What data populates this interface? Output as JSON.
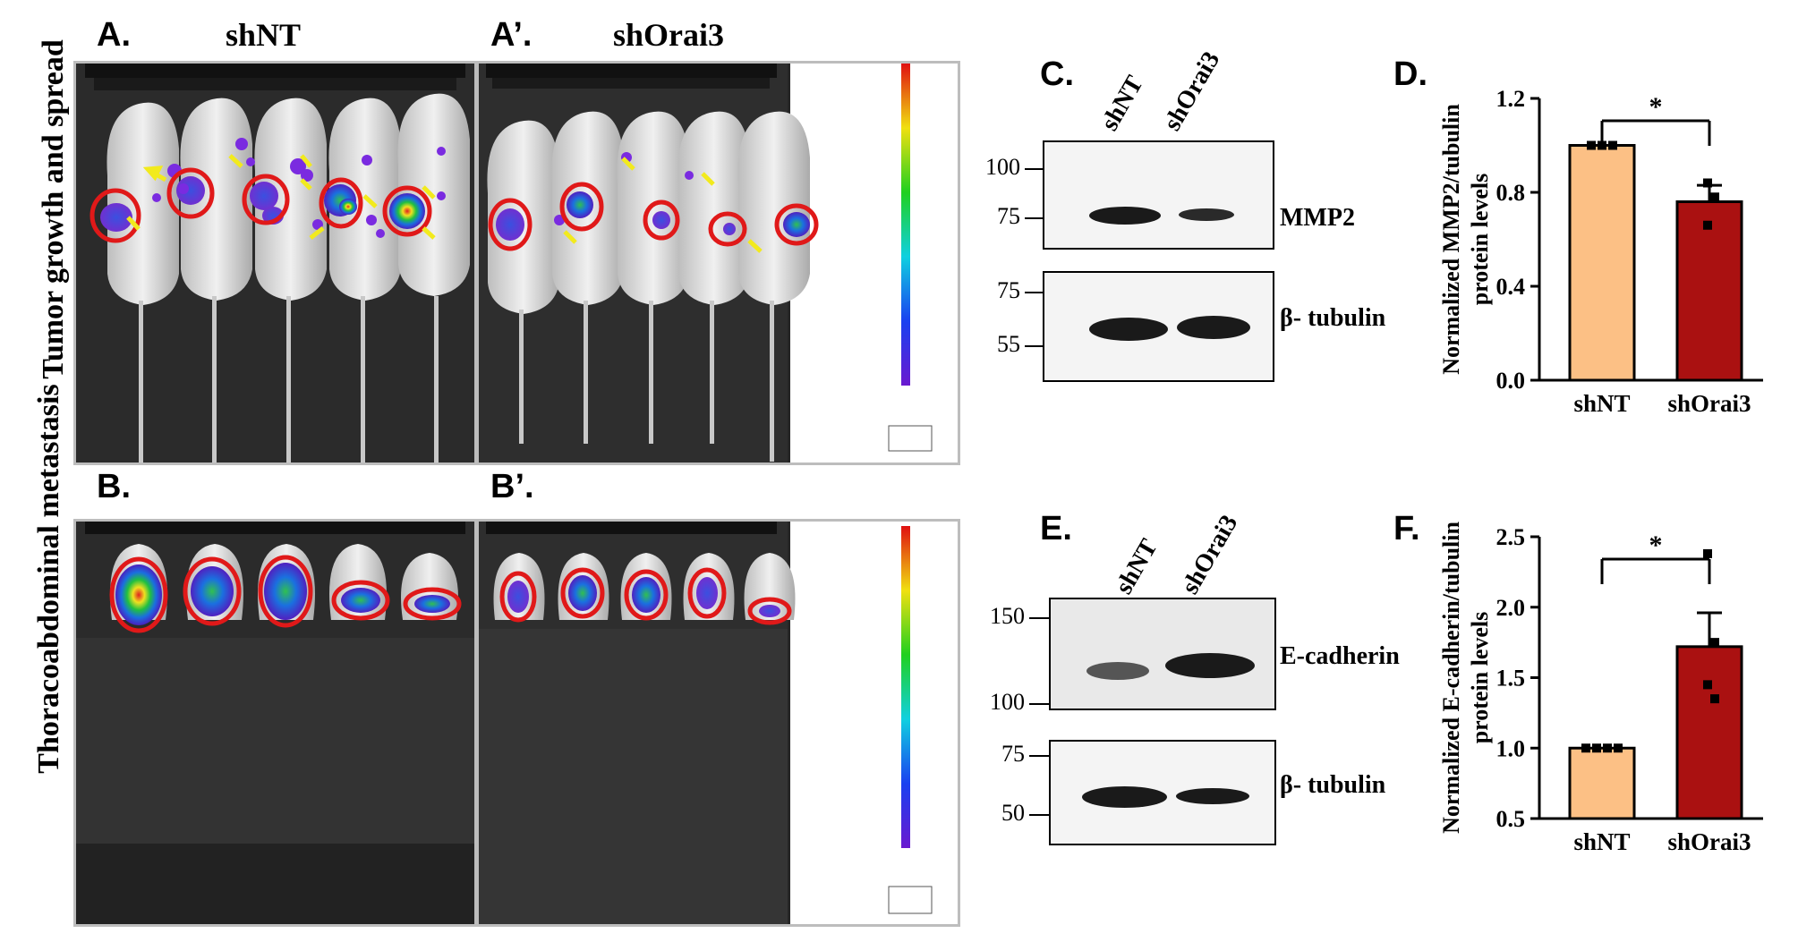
{
  "row_labels": {
    "top": "Tumor growth and spread",
    "bottom": "Thoracoabdominal metastasis"
  },
  "panels": {
    "A": {
      "label": "A.",
      "title": "shNT"
    },
    "A2": {
      "label": "A’.",
      "title": "shOrai3"
    },
    "B": {
      "label": "B."
    },
    "B2": {
      "label": "B’."
    },
    "C": {
      "label": "C."
    },
    "D": {
      "label": "D."
    },
    "E": {
      "label": "E."
    },
    "F": {
      "label": "F."
    }
  },
  "blots": {
    "C": {
      "lanes": [
        "shNT",
        "shOrai3"
      ],
      "top": {
        "protein": "MMP2",
        "markers": [
          "100",
          "75"
        ]
      },
      "bottom": {
        "protein": "β- tubulin",
        "markers": [
          "75",
          "55"
        ]
      }
    },
    "E": {
      "lanes": [
        "shNT",
        "shOrai3"
      ],
      "top": {
        "protein": "E-cadherin",
        "markers": [
          "150",
          "100"
        ]
      },
      "bottom": {
        "protein": "β- tubulin",
        "markers": [
          "75",
          "50"
        ]
      }
    }
  },
  "colors": {
    "shNT": "#fcc085",
    "shOrai3": "#aa1111",
    "tumor_circle": "#e01919",
    "arrow": "#f2ea1d"
  },
  "chart_data": [
    {
      "type": "bar",
      "categories": [
        "shNT",
        "shOrai3"
      ],
      "values": [
        1.0,
        0.76
      ],
      "errors": [
        0.0,
        0.07
      ],
      "points": [
        [
          1.0,
          1.0,
          1.0
        ],
        [
          0.84,
          0.78,
          0.66
        ]
      ],
      "ylabel": "Normalized MMP2/tubulin protein levels",
      "ylabel_lines": [
        "Normalized MMP2/tubulin",
        "protein levels"
      ],
      "ylim": [
        0,
        1.2
      ],
      "yticks": [
        "0.0",
        "0.4",
        "0.8",
        "1.2"
      ],
      "significance": "*"
    },
    {
      "type": "bar",
      "categories": [
        "shNT",
        "shOrai3"
      ],
      "values": [
        1.0,
        1.72
      ],
      "errors": [
        0.0,
        0.24
      ],
      "points": [
        [
          1.0,
          1.0,
          1.0,
          1.0
        ],
        [
          2.38,
          1.75,
          1.45,
          1.35
        ]
      ],
      "ylabel": "Normalized E-cadherin/tubulin protein levels",
      "ylabel_lines": [
        "Normalized E-cadherin/tubulin",
        "protein levels"
      ],
      "ylim": [
        0.5,
        2.5
      ],
      "yticks": [
        "0.5",
        "1.0",
        "1.5",
        "2.0",
        "2.5"
      ],
      "significance": "*"
    }
  ]
}
